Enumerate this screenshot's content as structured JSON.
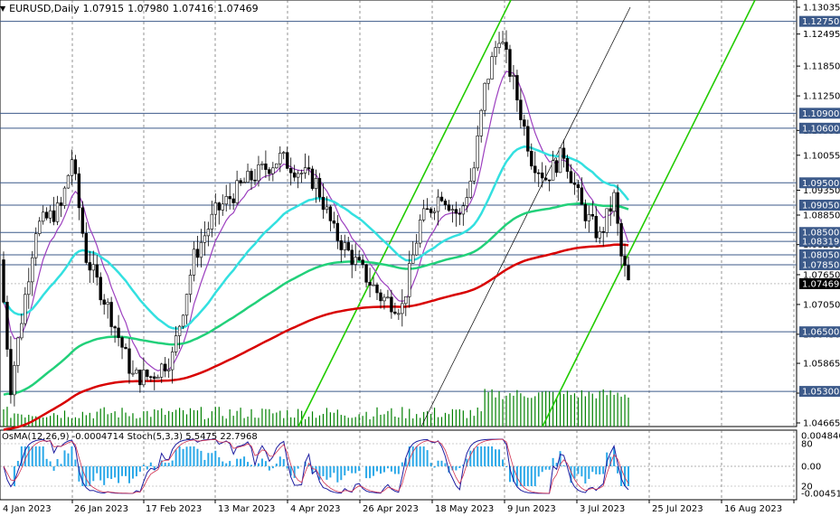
{
  "header": {
    "symbol": "EURUSD,Daily",
    "open": "1.07915",
    "high": "1.07980",
    "low": "1.07416",
    "close": "1.07469"
  },
  "price_axis": {
    "ticks": [
      "1.13035",
      "1.12495",
      "1.11850",
      "1.11250",
      "1.10555",
      "1.10055",
      "1.09350",
      "1.08850",
      "1.08255",
      "1.07650",
      "1.07050",
      "1.06450",
      "1.05865",
      "1.05265",
      "1.04665"
    ],
    "boxed_levels": [
      {
        "label": "1.12750",
        "color": "#3c5a8a"
      },
      {
        "label": "1.10900",
        "color": "#3c5a8a"
      },
      {
        "label": "1.10600",
        "color": "#3c5a8a"
      },
      {
        "label": "1.09500",
        "color": "#3c5a8a"
      },
      {
        "label": "1.09050",
        "color": "#3c5a8a"
      },
      {
        "label": "1.08500",
        "color": "#3c5a8a"
      },
      {
        "label": "1.08319",
        "color": "#3c5a8a"
      },
      {
        "label": "1.08050",
        "color": "#3c5a8a"
      },
      {
        "label": "1.07850",
        "color": "#3c5a8a"
      },
      {
        "label": "1.07469",
        "color": "#000000"
      },
      {
        "label": "1.06500",
        "color": "#3c5a8a"
      },
      {
        "label": "1.05300",
        "color": "#3c5a8a"
      }
    ]
  },
  "indicator": {
    "label": "OsMA(12,26,9) -0.0004714  Stoch(5,3,3) 5.5475 22.7968",
    "axis": [
      "0.0048468",
      "80",
      "0.00",
      "20",
      "-0.0045146"
    ]
  },
  "date_axis": [
    "4 Jan 2023",
    "26 Jan 2023",
    "17 Feb 2023",
    "13 Mar 2023",
    "4 Apr 2023",
    "26 Apr 2023",
    "18 May 2023",
    "9 Jun 2023",
    "3 Jul 2023",
    "25 Jul 2023",
    "16 Aug 2023"
  ],
  "colors": {
    "bull": "#008000",
    "bear": "#000000",
    "ema_fast": "#9c3fbf",
    "ema_mid": "#33e0e0",
    "ema_slow": "#22d07a",
    "ema_long": "#d80000",
    "channel": "#22cc00",
    "level": "#3c5a8a",
    "osma": "#2aa8e8",
    "stoch_main": "#1d1da0",
    "stoch_signal": "#d03050"
  }
}
